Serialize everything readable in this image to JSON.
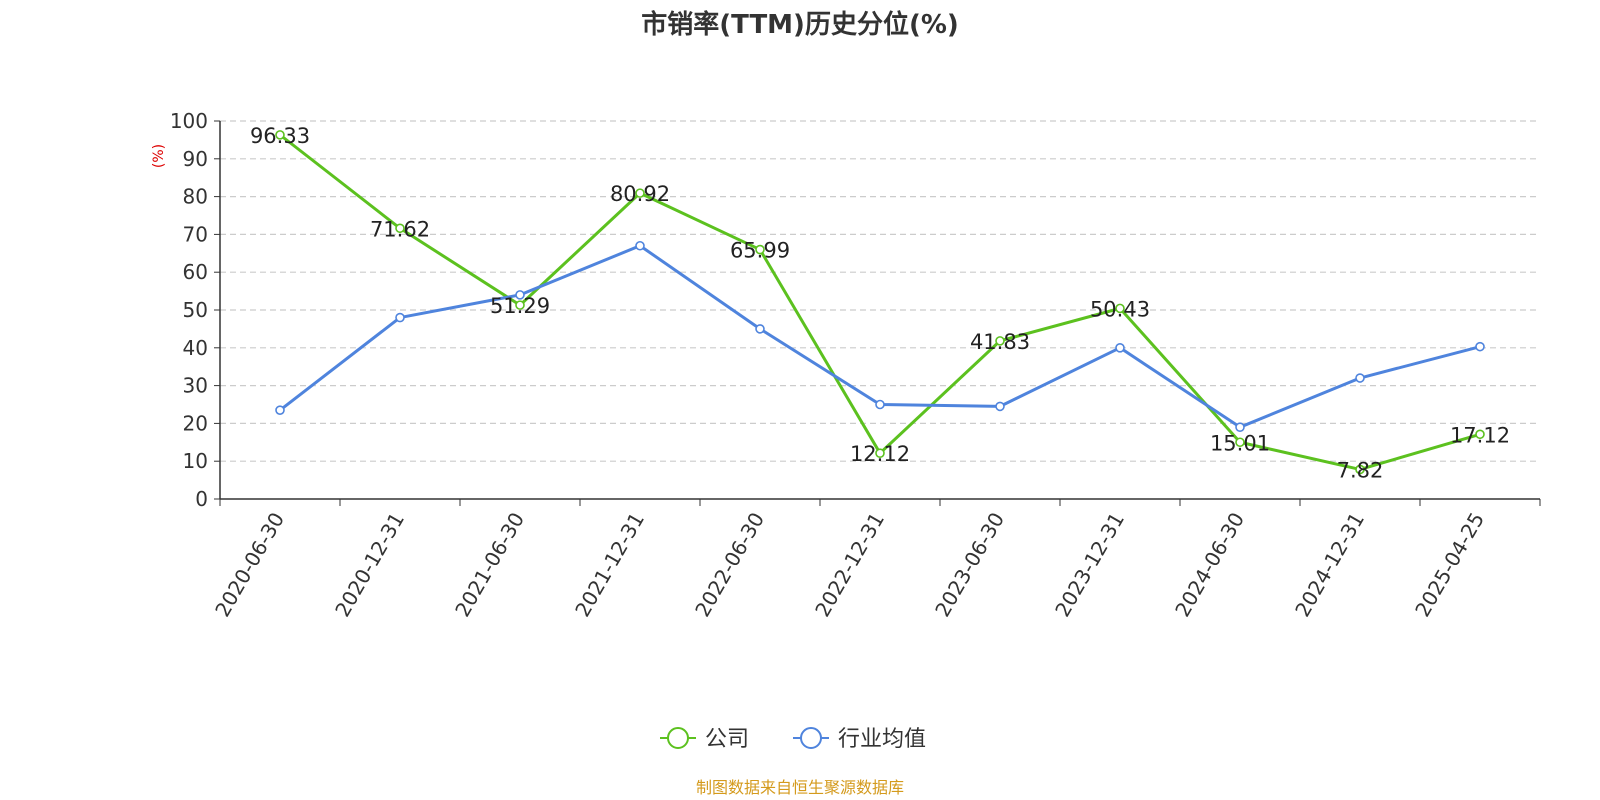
{
  "chart_data": {
    "type": "line",
    "title": "市销率(TTM)历史分位(%)",
    "ylabel": "(%)",
    "ylim": [
      0,
      100
    ],
    "yticks": [
      0,
      10,
      20,
      30,
      40,
      50,
      60,
      70,
      80,
      90,
      100
    ],
    "grid": true,
    "legend_position": "bottom-center",
    "categories": [
      "2020-06-30",
      "2020-12-31",
      "2021-06-30",
      "2021-12-31",
      "2022-06-30",
      "2022-12-31",
      "2023-06-30",
      "2023-12-31",
      "2024-06-30",
      "2024-12-31",
      "2025-04-25"
    ],
    "series": [
      {
        "name": "公司",
        "color": "#5cc11f",
        "values": [
          96.33,
          71.62,
          51.29,
          80.92,
          65.99,
          12.12,
          41.83,
          50.43,
          15.01,
          7.82,
          17.12
        ],
        "data_labels": [
          "96.33",
          "71.62",
          "51.29",
          "80.92",
          "65.99",
          "12.12",
          "41.83",
          "50.43",
          "15.01",
          "7.82",
          "17.12"
        ]
      },
      {
        "name": "行业均值",
        "color": "#4f84dd",
        "values": [
          23.5,
          48,
          54,
          67,
          45,
          25,
          24.5,
          40,
          19,
          32,
          40.3
        ]
      }
    ],
    "source_note": "制图数据来自恒生聚源数据库",
    "source_note_color": "#d49a1c",
    "ylabel_color": "#dd0000",
    "axis_color": "#333333",
    "grid_color": "#cccccc"
  }
}
